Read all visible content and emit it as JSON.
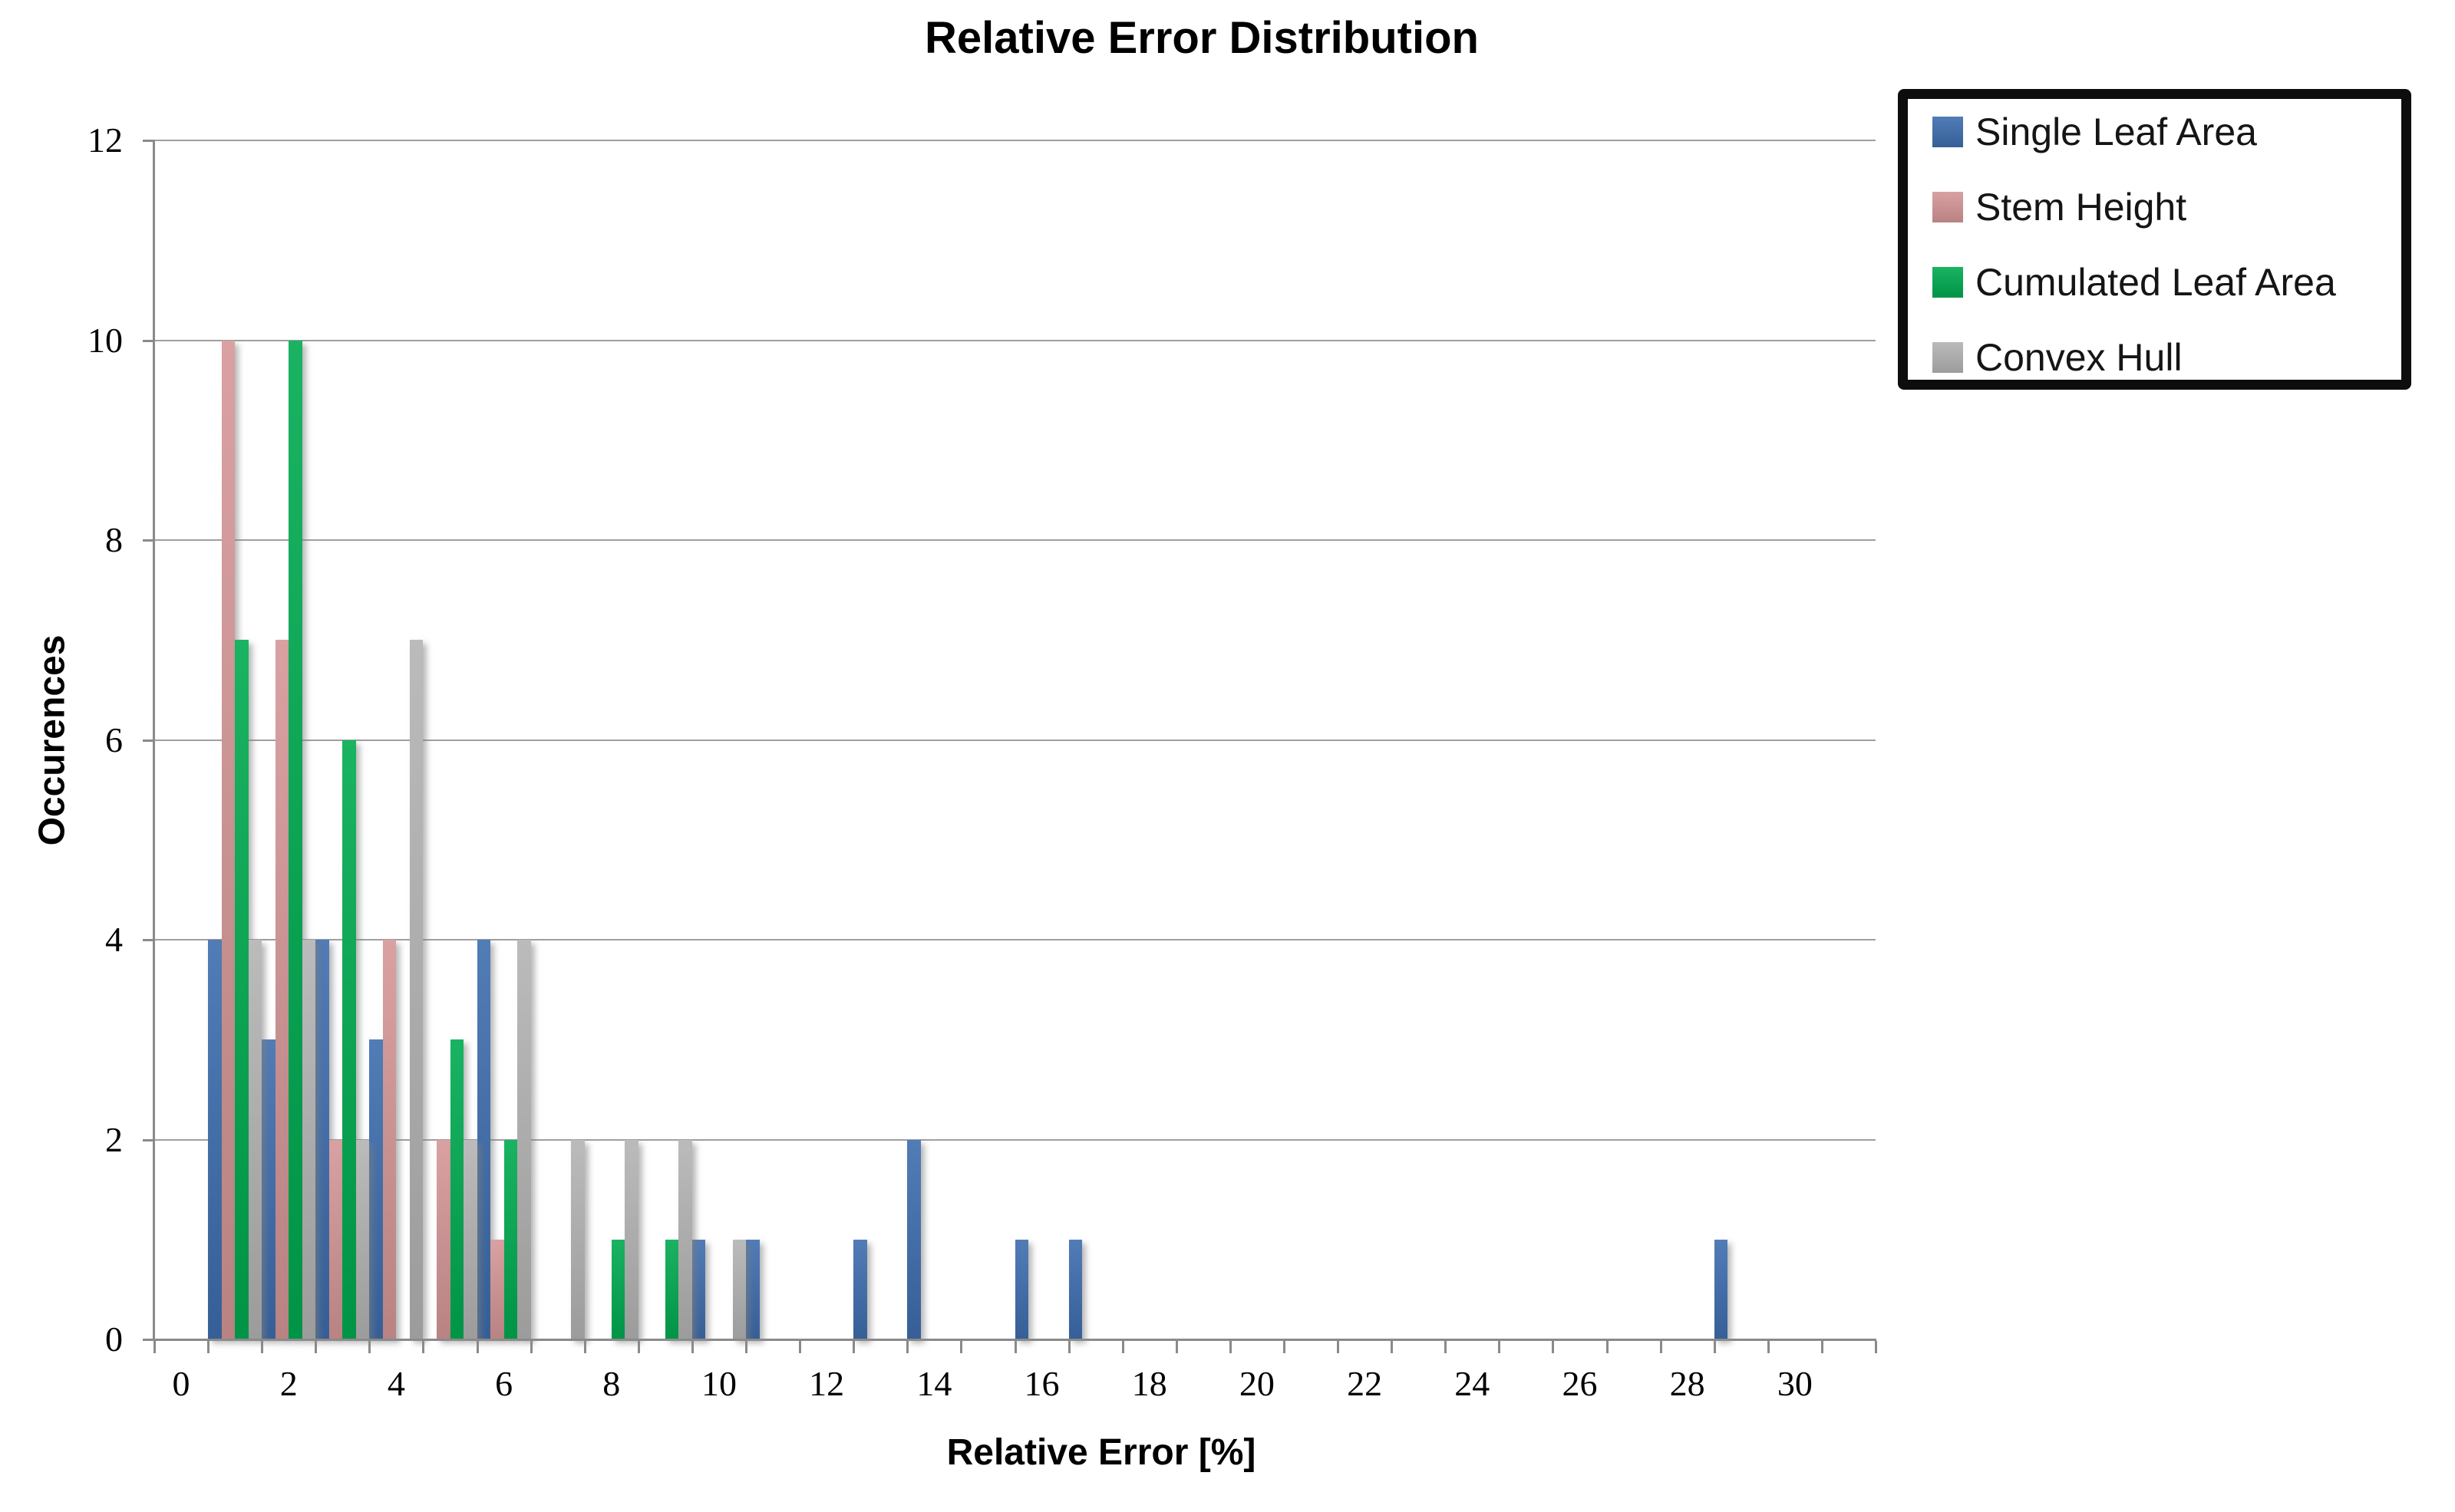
{
  "chart_data": {
    "type": "bar",
    "title": "Relative Error Distribution",
    "xlabel": "Relative Error [%]",
    "ylabel": "Occurences",
    "xlim": [
      -0.5,
      31.5
    ],
    "ylim": [
      0,
      12
    ],
    "grid": "horizontal",
    "legend_position": "top-right",
    "x_tick_labels": [
      0,
      2,
      4,
      6,
      8,
      10,
      12,
      14,
      16,
      18,
      20,
      22,
      24,
      26,
      28,
      30
    ],
    "y_ticks": [
      0,
      2,
      4,
      6,
      8,
      10,
      12
    ],
    "bin_centers": [
      1,
      2,
      3,
      4,
      5,
      6,
      7,
      8,
      9,
      10,
      11,
      12,
      13,
      14,
      15,
      16,
      17,
      18,
      19,
      20,
      21,
      22,
      23,
      24,
      25,
      26,
      27,
      28,
      29,
      30
    ],
    "series": [
      {
        "name": "Single Leaf Area",
        "color": "#3E6DAE",
        "values": [
          4,
          3,
          4,
          3,
          0,
          4,
          0,
          0,
          0,
          1,
          1,
          0,
          1,
          2,
          0,
          1,
          1,
          0,
          0,
          0,
          0,
          0,
          0,
          0,
          0,
          0,
          0,
          0,
          1,
          0
        ]
      },
      {
        "name": "Stem Height",
        "color": "#D59697",
        "values": [
          10,
          7,
          2,
          4,
          2,
          1,
          0,
          0,
          0,
          0,
          0,
          0,
          0,
          0,
          0,
          0,
          0,
          0,
          0,
          0,
          0,
          0,
          0,
          0,
          0,
          0,
          0,
          0,
          0,
          0
        ]
      },
      {
        "name": "Cumulated Leaf Area",
        "color": "#00AA50",
        "values": [
          7,
          10,
          6,
          0,
          3,
          2,
          0,
          1,
          1,
          0,
          0,
          0,
          0,
          0,
          0,
          0,
          0,
          0,
          0,
          0,
          0,
          0,
          0,
          0,
          0,
          0,
          0,
          0,
          0,
          0
        ]
      },
      {
        "name": "Convex Hull",
        "color": "#B3B3B3",
        "values": [
          4,
          4,
          2,
          7,
          2,
          4,
          2,
          2,
          2,
          1,
          0,
          0,
          0,
          0,
          0,
          0,
          0,
          0,
          0,
          0,
          0,
          0,
          0,
          0,
          0,
          0,
          0,
          0,
          0,
          0
        ]
      }
    ],
    "colors": {
      "gridline": "#a0a0a0",
      "axis": "#8a8a8a",
      "legend_border": "#0d0d0d"
    }
  }
}
